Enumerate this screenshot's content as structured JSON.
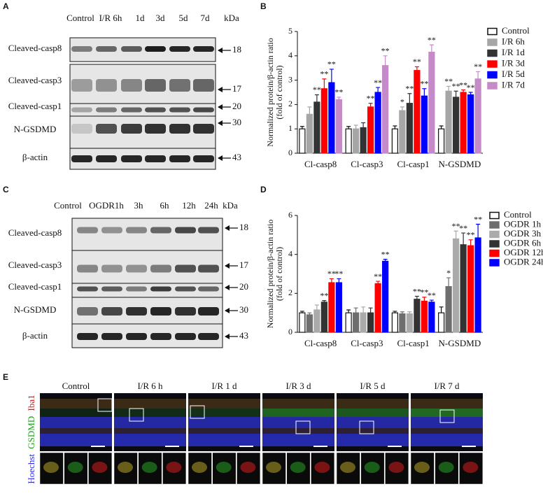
{
  "chart_data": [
    {
      "type": "bar",
      "panel": "B",
      "ylabel": [
        "Normalized protein/β-actin ratio",
        "(fold of control)"
      ],
      "categories": [
        "Cl-casp8",
        "Cl-casp3",
        "Cl-casp1",
        "N-GSDMD"
      ],
      "ylim": [
        0,
        5
      ],
      "yticks": [
        0,
        1,
        2,
        3,
        4,
        5
      ],
      "series": [
        {
          "name": "Control",
          "color": "#ffffff",
          "values": [
            1.0,
            1.0,
            1.0,
            1.0
          ],
          "errors": [
            0.1,
            0.1,
            0.12,
            0.12
          ],
          "sig": [
            null,
            null,
            null,
            null
          ]
        },
        {
          "name": "I/R 6h",
          "color": "#a6a6a6",
          "values": [
            1.6,
            1.0,
            1.75,
            2.55
          ],
          "errors": [
            0.3,
            0.15,
            0.15,
            0.2
          ],
          "sig": [
            null,
            null,
            "*",
            "**"
          ]
        },
        {
          "name": "I/R 1d",
          "color": "#333333",
          "values": [
            2.1,
            1.05,
            2.05,
            2.3
          ],
          "errors": [
            0.3,
            0.2,
            0.4,
            0.25
          ],
          "sig": [
            "**",
            null,
            "**",
            "**"
          ]
        },
        {
          "name": "I/R 3d",
          "color": "#ff0000",
          "values": [
            2.65,
            1.9,
            3.4,
            2.5
          ],
          "errors": [
            0.4,
            0.15,
            0.15,
            0.1
          ],
          "sig": [
            "**",
            "**",
            "**",
            "**"
          ]
        },
        {
          "name": "I/R 5d",
          "color": "#0000ff",
          "values": [
            2.9,
            2.5,
            2.35,
            2.4
          ],
          "errors": [
            0.55,
            0.2,
            0.3,
            0.1
          ],
          "sig": [
            "**",
            "**",
            "**",
            "**"
          ]
        },
        {
          "name": "I/R 7d",
          "color": "#c48bc8",
          "values": [
            2.2,
            3.6,
            4.15,
            3.05
          ],
          "errors": [
            0.1,
            0.4,
            0.3,
            0.3
          ],
          "sig": [
            "**",
            "**",
            "**",
            "**"
          ]
        }
      ]
    },
    {
      "type": "bar",
      "panel": "D",
      "ylabel": [
        "Normalized protein/β-actin ratio",
        "(fold of control)"
      ],
      "categories": [
        "Cl-casp8",
        "Cl-casp3",
        "Cl-casp1",
        "N-GSDMD"
      ],
      "ylim": [
        0,
        6
      ],
      "yticks": [
        0,
        2,
        4,
        6
      ],
      "series": [
        {
          "name": "Control",
          "color": "#ffffff",
          "values": [
            1.0,
            1.0,
            1.0,
            1.0
          ],
          "errors": [
            0.08,
            0.15,
            0.08,
            0.3
          ],
          "sig": [
            null,
            null,
            null,
            null
          ]
        },
        {
          "name": "OGDR 1h",
          "color": "#6e6e6e",
          "values": [
            0.9,
            1.0,
            0.95,
            2.35
          ],
          "errors": [
            0.1,
            0.25,
            0.1,
            0.45
          ],
          "sig": [
            null,
            null,
            null,
            "*"
          ]
        },
        {
          "name": "OGDR 3h",
          "color": "#aaaaaa",
          "values": [
            1.15,
            1.0,
            0.95,
            4.8
          ],
          "errors": [
            0.25,
            0.3,
            0.1,
            0.4
          ],
          "sig": [
            null,
            null,
            null,
            "**"
          ]
        },
        {
          "name": "OGDR 6h",
          "color": "#333333",
          "values": [
            1.55,
            1.0,
            1.7,
            4.5
          ],
          "errors": [
            0.08,
            0.25,
            0.15,
            0.6
          ],
          "sig": [
            "**",
            null,
            "**",
            "**"
          ]
        },
        {
          "name": "OGDR 12h",
          "color": "#ff0000",
          "values": [
            2.55,
            2.5,
            1.6,
            4.45
          ],
          "errors": [
            0.2,
            0.12,
            0.2,
            0.3
          ],
          "sig": [
            "**",
            "**",
            "**",
            "**"
          ]
        },
        {
          "name": "OGDR 24h",
          "color": "#0000ff",
          "values": [
            2.55,
            3.65,
            1.55,
            4.85
          ],
          "errors": [
            0.2,
            0.1,
            0.1,
            0.7
          ],
          "sig": [
            "**",
            "**",
            "**",
            "**"
          ]
        }
      ]
    }
  ],
  "blots": [
    {
      "panel": "A",
      "headers": [
        "Control",
        "I/R 6h",
        "1d",
        "3d",
        "5d",
        "7d"
      ],
      "unit": "kDa",
      "rows": [
        {
          "label": "Cleaved-casp8",
          "kda": 18
        },
        {
          "label": "Cleaved-casp3",
          "kda": 17
        },
        {
          "label": "Cleaved-casp1",
          "kda": 20
        },
        {
          "label": "N-GSDMD",
          "kda": 30
        },
        {
          "label": "β-actin",
          "kda": 43
        }
      ]
    },
    {
      "panel": "C",
      "headers": [
        "Control",
        "OGDR1h",
        "3h",
        "6h",
        "12h",
        "24h"
      ],
      "unit": "kDa",
      "rows": [
        {
          "label": "Cleaved-casp8",
          "kda": 18
        },
        {
          "label": "Cleaved-casp3",
          "kda": 17
        },
        {
          "label": "Cleaved-casp1",
          "kda": 20
        },
        {
          "label": "N-GSDMD",
          "kda": 30
        },
        {
          "label": "β-actin",
          "kda": 43
        }
      ]
    }
  ],
  "images": {
    "panel": "E",
    "stains": [
      "Hoechst",
      "GSDMD",
      "Iba1"
    ],
    "conditions": [
      "Control",
      "I/R 6 h",
      "I/R 1 d",
      "I/R 3 d",
      "I/R 5 d",
      "I/R 7 d"
    ]
  }
}
